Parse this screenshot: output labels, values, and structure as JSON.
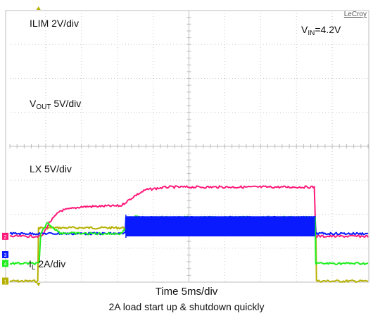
{
  "chart_data": {
    "type": "line",
    "brand": "LeCroy",
    "x_axis": {
      "units": "ms",
      "range": [
        0,
        50
      ],
      "per_div": 5,
      "divisions": 10
    },
    "y_axis": {
      "divisions": 8
    },
    "grid": true,
    "channel_markers": [
      "1",
      "2",
      "3",
      "4"
    ],
    "series": [
      {
        "name": "ILIM",
        "label_main": "ILIM 2V/div",
        "label_sub": "",
        "label_tail": "",
        "color": "#b5b000",
        "points": [
          [
            0,
            0.03
          ],
          [
            3.9,
            0.03
          ],
          [
            4.0,
            1.6
          ],
          [
            42.7,
            1.6
          ],
          [
            42.8,
            0.03
          ],
          [
            50,
            0.03
          ]
        ]
      },
      {
        "name": "VOUT",
        "label_main": "V",
        "label_sub": "OUT",
        "label_tail": " 5V/div",
        "color": "#ff1a7a",
        "points": [
          [
            0,
            1.35
          ],
          [
            4.5,
            1.35
          ],
          [
            5.5,
            1.75
          ],
          [
            7.0,
            2.1
          ],
          [
            10,
            2.22
          ],
          [
            15.5,
            2.25
          ],
          [
            17.5,
            2.55
          ],
          [
            19,
            2.72
          ],
          [
            22,
            2.8
          ],
          [
            42.5,
            2.8
          ],
          [
            42.7,
            1.35
          ],
          [
            50,
            1.35
          ]
        ]
      },
      {
        "name": "LX",
        "label_main": "LX  5V/div",
        "label_sub": "",
        "label_tail": "",
        "color": "#0a1aff",
        "points": [
          [
            0,
            1.43
          ],
          [
            16.1,
            1.43
          ],
          [
            16.2,
            1.9
          ],
          [
            42.6,
            1.9
          ],
          [
            42.7,
            1.43
          ],
          [
            50,
            1.43
          ]
        ]
      },
      {
        "name": "IL",
        "label_main": "I",
        "label_sub": "L",
        "label_tail": " 2A/div",
        "color": "#1eee1e",
        "points": [
          [
            0,
            0.55
          ],
          [
            4.1,
            0.55
          ],
          [
            4.3,
            1.4
          ],
          [
            5.2,
            1.75
          ],
          [
            7.0,
            1.45
          ],
          [
            10,
            1.43
          ],
          [
            15.5,
            1.43
          ],
          [
            16.2,
            1.6
          ],
          [
            17.5,
            1.92
          ],
          [
            20,
            1.9
          ],
          [
            42.6,
            1.9
          ],
          [
            42.7,
            0.55
          ],
          [
            50,
            0.55
          ]
        ]
      }
    ],
    "annotation": {
      "main": "V",
      "sub": "IN",
      "tail": "=4.2V"
    },
    "xlabel": "Time  5ms/div",
    "caption": "2A load start up & shutdown quickly"
  }
}
